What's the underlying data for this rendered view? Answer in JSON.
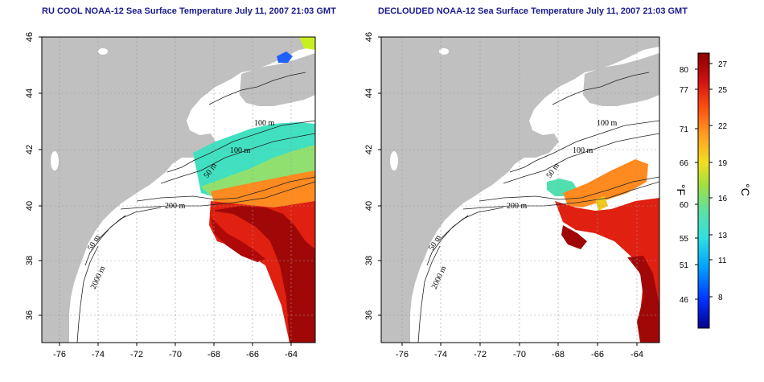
{
  "panels": [
    {
      "id": "left",
      "title": "RU COOL NOAA-12 Sea Surface Temperature July 11, 2007 21:03 GMT"
    },
    {
      "id": "right",
      "title": "DECLOUDED NOAA-12 Sea Surface Temperature July 11, 2007 21:03 GMT"
    }
  ],
  "axes": {
    "lon_ticks": [
      "-76",
      "-74",
      "-72",
      "-70",
      "-68",
      "-66",
      "-64"
    ],
    "lat_ticks": [
      "46",
      "44",
      "42",
      "40",
      "38",
      "36"
    ]
  },
  "contour_labels": {
    "left": [
      "100 m",
      "100 m",
      "50 m",
      "200 m",
      "50 m",
      "2000 m"
    ],
    "right": [
      "100 m",
      "100 m",
      "50 m",
      "200 m",
      "50 m",
      "2000 m"
    ]
  },
  "colorbar": {
    "fahrenheit_ticks": [
      "80",
      "77",
      "71",
      "66",
      "60",
      "55",
      "51",
      "46"
    ],
    "celsius_ticks": [
      "27",
      "25",
      "22",
      "19",
      "16",
      "13",
      "11",
      "8"
    ],
    "f_unit": "°F",
    "c_unit": "°C"
  },
  "colors": {
    "land": "#c0c0c0",
    "ocean": "#ffffff",
    "title": "#1a1a8c",
    "sst_scale": [
      "#08008c",
      "#0030ff",
      "#00a0ff",
      "#30e0e0",
      "#60e0a0",
      "#a0e040",
      "#f0e020",
      "#ffa020",
      "#ff5010",
      "#d01010",
      "#8c0000"
    ]
  }
}
